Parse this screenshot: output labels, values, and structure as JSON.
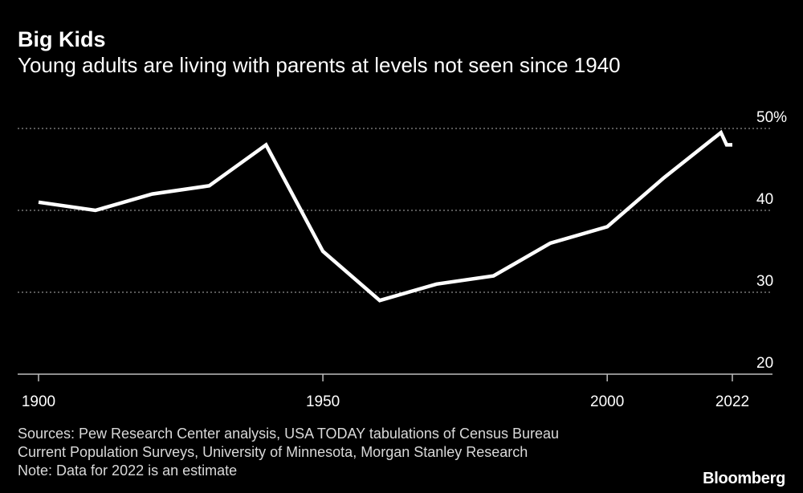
{
  "header": {
    "title": "Big Kids",
    "subtitle": "Young adults are living with parents at levels not seen since 1940"
  },
  "footer": {
    "source_line_1": "Sources: Pew Research Center analysis, USA TODAY tabulations of Census Bureau",
    "source_line_2": "Current Population Surveys, University of Minnesota, Morgan Stanley Research",
    "note": "Note: Data for 2022 is an estimate",
    "brand": "Bloomberg"
  },
  "colors": {
    "background": "#000000",
    "line": "#ffffff",
    "grid": "#8c8c8c",
    "text": "#ffffff"
  },
  "chart_data": {
    "type": "line",
    "title": "Big Kids",
    "subtitle": "Young adults are living with parents at levels not seen since 1940",
    "xlabel": "",
    "ylabel": "",
    "xlim": [
      1900,
      2022
    ],
    "ylim": [
      20,
      50
    ],
    "x_ticks": [
      1900,
      1950,
      2000,
      2022
    ],
    "x_tick_labels": [
      "1900",
      "1950",
      "2000",
      "2022"
    ],
    "y_ticks": [
      20,
      30,
      40,
      50
    ],
    "y_tick_labels": [
      "20",
      "30",
      "40",
      "50%"
    ],
    "grid": "horizontal dotted",
    "y_axis_position": "right",
    "series": [
      {
        "x": [
          1900,
          1910,
          1920,
          1930,
          1940,
          1950,
          1960,
          1970,
          1980,
          1990,
          2000,
          2010,
          2020,
          2021,
          2022
        ],
        "values": [
          41,
          40,
          42,
          43,
          48,
          35,
          29,
          31,
          32,
          36,
          38,
          44,
          49.5,
          48,
          48
        ]
      }
    ]
  }
}
